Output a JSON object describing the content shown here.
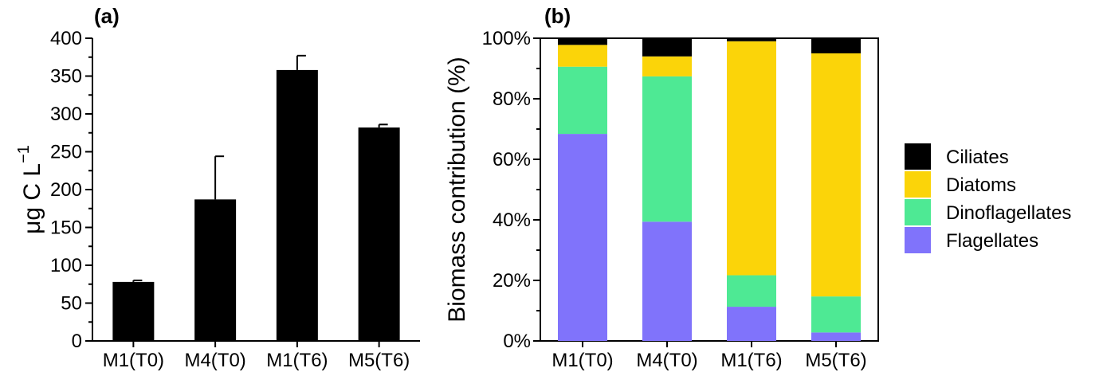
{
  "chart_data": [
    {
      "panel_label": "(a)",
      "type": "bar",
      "categories": [
        "M1(T0)",
        "M4(T0)",
        "M1(T6)",
        "M5(T6)"
      ],
      "values": [
        78,
        187,
        358,
        282
      ],
      "errors": [
        2,
        57,
        19,
        4
      ],
      "ylabel": "μg C L",
      "ylabel_superscript": "−1",
      "ylim": [
        0,
        400
      ],
      "yticks": [
        "0",
        "50",
        "100",
        "150",
        "200",
        "250",
        "300",
        "350",
        "400"
      ],
      "bar_color": "#000000"
    },
    {
      "panel_label": "(b)",
      "type": "bar",
      "stacked": true,
      "categories": [
        "M1(T0)",
        "M4(T0)",
        "M1(T6)",
        "M5(T6)"
      ],
      "series": [
        {
          "name": "Flagellates",
          "values": [
            68.4,
            39.4,
            11.3,
            2.8
          ]
        },
        {
          "name": "Dinoflagellates",
          "values": [
            22.2,
            48.0,
            10.4,
            11.9
          ]
        },
        {
          "name": "Diatoms",
          "values": [
            7.2,
            6.6,
            77.3,
            80.3
          ]
        },
        {
          "name": "Ciliates",
          "values": [
            2.2,
            6.0,
            1.0,
            5.0
          ]
        }
      ],
      "ylabel": "Biomass contribution (%)",
      "ylim": [
        0,
        100
      ],
      "yticks": [
        "0%",
        "20%",
        "40%",
        "60%",
        "80%",
        "100%"
      ],
      "legend": [
        "Ciliates",
        "Diatoms",
        "Dinoflagellates",
        "Flagellates"
      ],
      "legend_position": "right",
      "colors": {
        "Flagellates": "#8073fb",
        "Dinoflagellates": "#4ee994",
        "Diatoms": "#fbd409",
        "Ciliates": "#000000"
      }
    }
  ]
}
